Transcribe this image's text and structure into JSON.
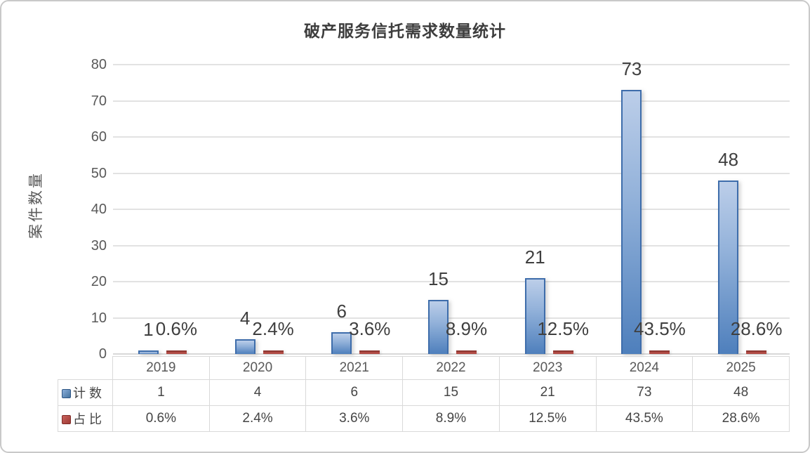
{
  "chart_data": {
    "type": "bar",
    "title": "破产服务信托需求数量统计",
    "y_axis_title": "案件数量",
    "categories": [
      "2019",
      "2020",
      "2021",
      "2022",
      "2023",
      "2024",
      "2025"
    ],
    "series": [
      {
        "name": "计数",
        "color": "#4f81bd",
        "values": [
          1,
          4,
          6,
          15,
          21,
          73,
          48
        ],
        "labels": [
          "1",
          "4",
          "6",
          "15",
          "21",
          "73",
          "48"
        ]
      },
      {
        "name": "占比",
        "color": "#b94a48",
        "values_percent": [
          0.6,
          2.4,
          3.6,
          8.9,
          12.5,
          43.5,
          28.6
        ],
        "labels": [
          "0.6%",
          "2.4%",
          "3.6%",
          "8.9%",
          "12.5%",
          "43.5%",
          "28.6%"
        ]
      }
    ],
    "y_ticks": [
      0,
      10,
      20,
      30,
      40,
      50,
      60,
      70,
      80
    ],
    "ylim": [
      0,
      80
    ],
    "grid": true,
    "legend_position": "table-left",
    "data_table_shown": true
  },
  "colors": {
    "count_bar_fill_top": "#bccee9",
    "count_bar_fill_bottom": "#4e7fbc",
    "count_bar_border": "#3e6dab",
    "share_bar_fill": "#b14b45",
    "share_bar_border": "#8e3732",
    "gridline": "#e2e2e2",
    "tick_text": "#595959",
    "label_text": "#3f3f3f",
    "table_border": "#d9d9d9",
    "panel_border": "#c9c9c9"
  }
}
